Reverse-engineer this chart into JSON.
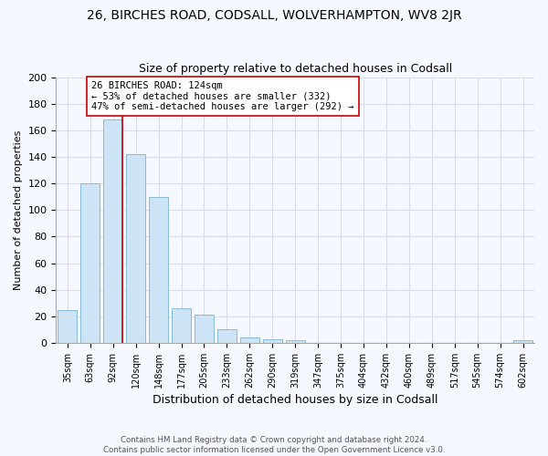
{
  "title": "26, BIRCHES ROAD, CODSALL, WOLVERHAMPTON, WV8 2JR",
  "subtitle": "Size of property relative to detached houses in Codsall",
  "xlabel": "Distribution of detached houses by size in Codsall",
  "ylabel": "Number of detached properties",
  "bar_labels": [
    "35sqm",
    "63sqm",
    "92sqm",
    "120sqm",
    "148sqm",
    "177sqm",
    "205sqm",
    "233sqm",
    "262sqm",
    "290sqm",
    "319sqm",
    "347sqm",
    "375sqm",
    "404sqm",
    "432sqm",
    "460sqm",
    "489sqm",
    "517sqm",
    "545sqm",
    "574sqm",
    "602sqm"
  ],
  "bar_values": [
    25,
    120,
    168,
    142,
    110,
    26,
    21,
    10,
    4,
    3,
    2,
    0,
    0,
    0,
    0,
    0,
    0,
    0,
    0,
    0,
    2
  ],
  "bar_color": "#cce4f5",
  "bar_edge_color": "#88bbd8",
  "property_line_color": "#cc0000",
  "annotation_line1": "26 BIRCHES ROAD: 124sqm",
  "annotation_line2": "← 53% of detached houses are smaller (332)",
  "annotation_line3": "47% of semi-detached houses are larger (292) →",
  "annotation_box_color": "#ffffff",
  "annotation_box_edge": "#cc0000",
  "ylim": [
    0,
    200
  ],
  "yticks": [
    0,
    20,
    40,
    60,
    80,
    100,
    120,
    140,
    160,
    180,
    200
  ],
  "footer_line1": "Contains HM Land Registry data © Crown copyright and database right 2024.",
  "footer_line2": "Contains public sector information licensed under the Open Government Licence v3.0.",
  "bg_color": "#f5f8ff",
  "grid_color": "#d8dde8",
  "title_fontsize": 10,
  "subtitle_fontsize": 9
}
